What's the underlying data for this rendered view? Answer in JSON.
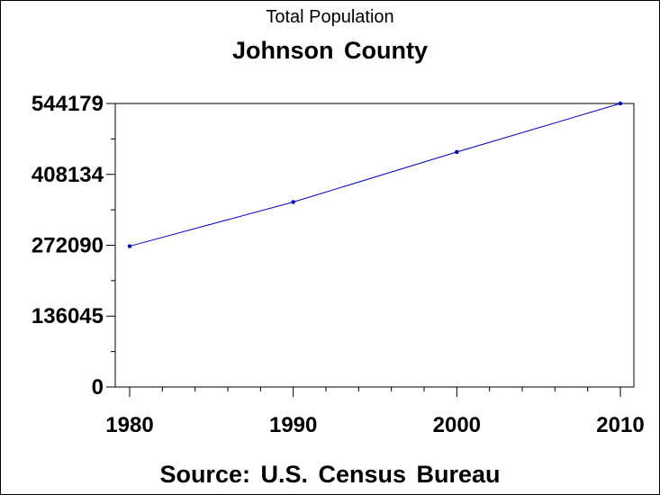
{
  "chart_data": {
    "type": "line",
    "title": "Total Population",
    "subtitle": "Johnson County",
    "footer": "Source: U.S. Census Bureau",
    "xlabel": "",
    "ylabel": "",
    "x": [
      1980,
      1990,
      2000,
      2010
    ],
    "series": [
      {
        "values": [
          270269,
          355054,
          451086,
          544179
        ]
      }
    ],
    "xlim": [
      1980,
      2010
    ],
    "ylim": [
      0,
      544179
    ],
    "x_ticks": [
      "1980",
      "1990",
      "2000",
      "2010"
    ],
    "y_ticks": [
      "0",
      "136045",
      "272090",
      "408134",
      "544179"
    ],
    "y_tick_values": [
      0,
      136045,
      272090,
      408134,
      544179
    ],
    "grid": false,
    "legend": "none",
    "line_color": "#0000cc",
    "marker_color": "#0000cc"
  }
}
